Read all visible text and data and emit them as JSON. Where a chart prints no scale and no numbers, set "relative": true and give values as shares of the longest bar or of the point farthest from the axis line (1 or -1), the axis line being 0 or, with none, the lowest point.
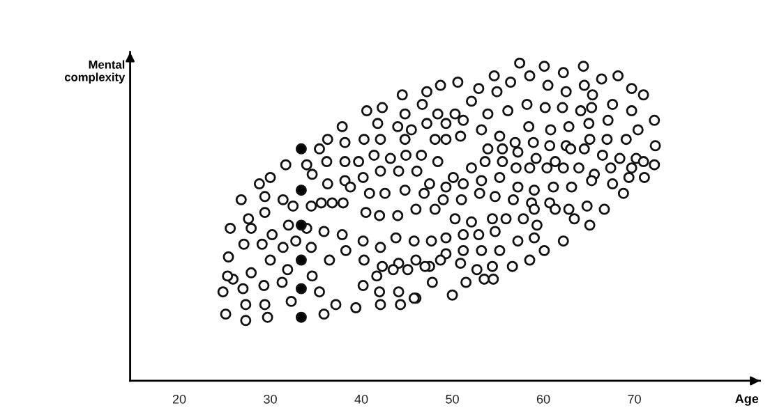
{
  "chart_data": {
    "type": "scatter",
    "xlabel": "Age",
    "ylabel": "Mental\ncomplexity",
    "relative": true,
    "xlim": [
      14.6,
      83.8
    ],
    "xticks": [
      20,
      30,
      40,
      50,
      60,
      70
    ],
    "marker": "circle",
    "tick_labels": "x",
    "series": [
      {
        "color": "#ffffff",
        "x": [
          57.4,
          64.4,
          60.1,
          62.2,
          66.4,
          68.2,
          54.6,
          56.4,
          58.5,
          54.9,
          52.9,
          50.6,
          48.7,
          47.2,
          44.5,
          42.3,
          40.6,
          44.8,
          46.7,
          48.4,
          50.3,
          52.1,
          53.9,
          56.1,
          58.2,
          60.5,
          62.5,
          64.5,
          65.4,
          69.7,
          71.0,
          67.6,
          65.3,
          64.1,
          62.1,
          60.2,
          58.4,
          60.8,
          62.8,
          65.0,
          67.1,
          69.7,
          72.2,
          70.4,
          69.1,
          67.0,
          65.1,
          62.5,
          60.7,
          58.9,
          56.9,
          55.2,
          53.2,
          51.2,
          49.3,
          47.2,
          45.5,
          44.0,
          41.8,
          37.9,
          36.3,
          38.2,
          40.3,
          42.1,
          44.8,
          48.1,
          49.3,
          50.9,
          53.9,
          55.5,
          57.2,
          59.2,
          61.3,
          63.0,
          64.5,
          66.5,
          68.4,
          70.2,
          72.3,
          72.2,
          71.0,
          69.7,
          67.4,
          65.6,
          63.9,
          62.2,
          60.4,
          58.5,
          57.0,
          55.5,
          53.6,
          52.1,
          50.1,
          48.4,
          46.6,
          44.9,
          43.2,
          41.4,
          39.7,
          38.2,
          36.2,
          35.4,
          34.0,
          31.7,
          30.0,
          28.8,
          26.8,
          27.6,
          29.4,
          31.4,
          34.6,
          36.3,
          38.2,
          40.2,
          42.1,
          44.1,
          46.1,
          47.5,
          49.3,
          51.2,
          53.2,
          55.2,
          57.2,
          59.0,
          61.1,
          63.1,
          65.3,
          67.6,
          69.4,
          71.1,
          68.8,
          66.7,
          64.8,
          62.8,
          60.7,
          58.7,
          56.7,
          54.7,
          53.0,
          51.0,
          49.0,
          46.9,
          44.8,
          42.6,
          40.9,
          38.8,
          36.8,
          34.5,
          32.5,
          38.0,
          35.6,
          40.5,
          42.0,
          44.0,
          46.0,
          48.1,
          50.3,
          52.1,
          54.4,
          55.9,
          57.8,
          59.3,
          61.3,
          65.1,
          63.4,
          59.0,
          54.7,
          52.9,
          51.2,
          49.3,
          47.7,
          45.8,
          43.8,
          42.1,
          40.2,
          37.9,
          35.9,
          34.0,
          32.0,
          30.2,
          27.9,
          25.6,
          25.4,
          27.1,
          29.1,
          31.4,
          32.8,
          34.5,
          36.5,
          38.3,
          40.3,
          42.3,
          44.1,
          46.0,
          47.5,
          49.3,
          51.2,
          53.2,
          55.2,
          57.2,
          59.0,
          60.1,
          62.2,
          58.5,
          56.6,
          54.4,
          52.7,
          50.9,
          48.7,
          47.0,
          45.1,
          43.5,
          41.7,
          40.2,
          42.0,
          44.1,
          46.0,
          47.8,
          50.0,
          51.5,
          53.5,
          54.5,
          34.6,
          31.9,
          30.0,
          27.9,
          25.9,
          24.8,
          27.0,
          29.3,
          31.3,
          35.4,
          37.2,
          39.4,
          42.1,
          44.3,
          45.8,
          35.9,
          32.3,
          29.4,
          27.3,
          25.1,
          27.3,
          29.7,
          25.3,
          29.4
        ],
        "values": [
          1.0,
          0.99,
          0.99,
          0.97,
          0.95,
          0.96,
          0.96,
          0.94,
          0.96,
          0.91,
          0.92,
          0.94,
          0.93,
          0.91,
          0.9,
          0.86,
          0.85,
          0.84,
          0.87,
          0.84,
          0.84,
          0.88,
          0.84,
          0.85,
          0.87,
          0.93,
          0.91,
          0.93,
          0.9,
          0.92,
          0.9,
          0.87,
          0.86,
          0.85,
          0.86,
          0.86,
          0.8,
          0.79,
          0.8,
          0.81,
          0.82,
          0.85,
          0.82,
          0.79,
          0.76,
          0.76,
          0.76,
          0.74,
          0.74,
          0.75,
          0.75,
          0.77,
          0.79,
          0.82,
          0.81,
          0.81,
          0.79,
          0.8,
          0.81,
          0.8,
          0.76,
          0.75,
          0.76,
          0.76,
          0.76,
          0.76,
          0.76,
          0.77,
          0.73,
          0.73,
          0.72,
          0.7,
          0.69,
          0.73,
          0.73,
          0.71,
          0.7,
          0.7,
          0.74,
          0.68,
          0.69,
          0.67,
          0.67,
          0.65,
          0.67,
          0.67,
          0.67,
          0.67,
          0.67,
          0.69,
          0.69,
          0.67,
          0.64,
          0.69,
          0.71,
          0.71,
          0.7,
          0.71,
          0.69,
          0.69,
          0.69,
          0.73,
          0.68,
          0.68,
          0.64,
          0.62,
          0.57,
          0.51,
          0.53,
          0.57,
          0.65,
          0.62,
          0.63,
          0.64,
          0.66,
          0.66,
          0.66,
          0.62,
          0.61,
          0.62,
          0.63,
          0.64,
          0.61,
          0.6,
          0.61,
          0.61,
          0.63,
          0.62,
          0.64,
          0.64,
          0.59,
          0.54,
          0.55,
          0.54,
          0.56,
          0.56,
          0.57,
          0.58,
          0.59,
          0.57,
          0.57,
          0.59,
          0.6,
          0.59,
          0.59,
          0.61,
          0.56,
          0.55,
          0.55,
          0.56,
          0.56,
          0.53,
          0.52,
          0.52,
          0.54,
          0.54,
          0.51,
          0.5,
          0.51,
          0.51,
          0.51,
          0.49,
          0.54,
          0.49,
          0.51,
          0.54,
          0.47,
          0.46,
          0.46,
          0.45,
          0.44,
          0.44,
          0.45,
          0.42,
          0.44,
          0.46,
          0.47,
          0.48,
          0.49,
          0.46,
          0.48,
          0.48,
          0.39,
          0.43,
          0.43,
          0.42,
          0.44,
          0.42,
          0.38,
          0.41,
          0.38,
          0.36,
          0.37,
          0.38,
          0.36,
          0.4,
          0.41,
          0.41,
          0.41,
          0.44,
          0.45,
          0.41,
          0.44,
          0.38,
          0.36,
          0.36,
          0.35,
          0.37,
          0.38,
          0.36,
          0.35,
          0.35,
          0.33,
          0.3,
          0.28,
          0.28,
          0.26,
          0.31,
          0.27,
          0.31,
          0.32,
          0.32,
          0.33,
          0.35,
          0.38,
          0.34,
          0.32,
          0.28,
          0.29,
          0.3,
          0.31,
          0.28,
          0.24,
          0.23,
          0.24,
          0.24,
          0.26,
          0.21,
          0.25,
          0.24,
          0.24,
          0.21,
          0.19,
          0.2,
          0.33,
          0.58
        ]
      },
      {
        "color": "#000000",
        "x": [
          33.4,
          33.4,
          33.4,
          33.4,
          33.4,
          33.4
        ],
        "values": [
          0.73,
          0.6,
          0.49,
          0.38,
          0.29,
          0.2
        ]
      }
    ]
  }
}
